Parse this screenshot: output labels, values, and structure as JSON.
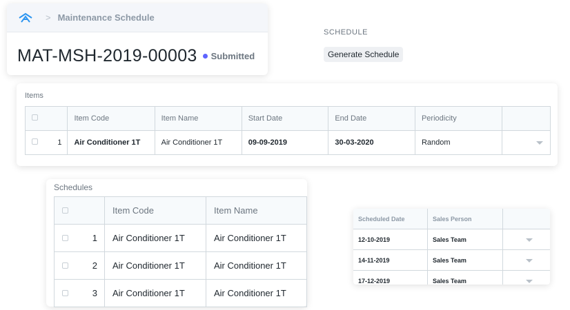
{
  "breadcrumb": {
    "module": "Maintenance Schedule"
  },
  "doc": {
    "title": "MAT-MSH-2019-00003",
    "status": "Submitted",
    "status_color": "#5e64ff"
  },
  "schedule_section": {
    "label": "SCHEDULE",
    "button": "Generate Schedule"
  },
  "items": {
    "label": "Items",
    "columns": [
      "Item Code",
      "Item Name",
      "Start Date",
      "End Date",
      "Periodicity"
    ],
    "rows": [
      {
        "idx": "1",
        "item_code": "Air Conditioner 1T",
        "item_name": "Air Conditioner 1T",
        "start_date": "09-09-2019",
        "end_date": "30-03-2020",
        "periodicity": "Random"
      }
    ]
  },
  "schedules": {
    "label": "Schedules",
    "columns": [
      "Item Code",
      "Item Name"
    ],
    "rows": [
      {
        "idx": "1",
        "item_code": "Air Conditioner 1T",
        "item_name": "Air Conditioner 1T"
      },
      {
        "idx": "2",
        "item_code": "Air Conditioner 1T",
        "item_name": "Air Conditioner 1T"
      },
      {
        "idx": "3",
        "item_code": "Air Conditioner 1T",
        "item_name": "Air Conditioner 1T"
      }
    ]
  },
  "schedule_details": {
    "columns": [
      "Scheduled Date",
      "Sales Person"
    ],
    "rows": [
      {
        "date": "12-10-2019",
        "person": "Sales Team"
      },
      {
        "date": "14-11-2019",
        "person": "Sales Team"
      },
      {
        "date": "17-12-2019",
        "person": "Sales Team"
      }
    ]
  }
}
